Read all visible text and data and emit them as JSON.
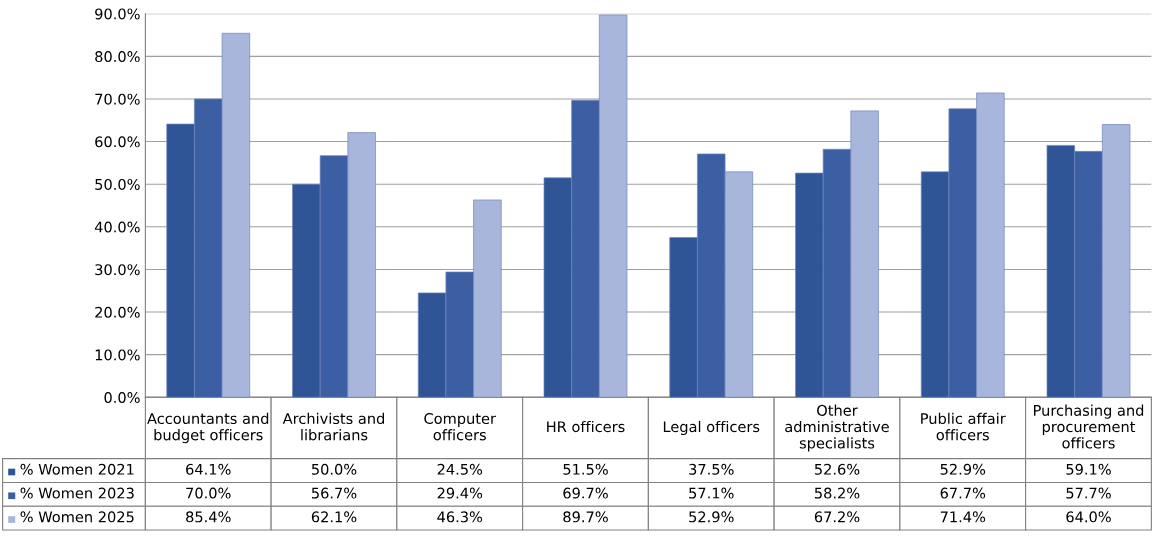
{
  "chart_data": {
    "type": "bar",
    "categories": [
      "Accountants and budget officers",
      "Archivists and librarians",
      "Computer officers",
      "HR officers",
      "Legal officers",
      "Other administrative specialists",
      "Public affair officers",
      "Purchasing and procurement officers"
    ],
    "series": [
      {
        "name": "% Women 2021",
        "color": "#2f5597",
        "values": [
          64.1,
          50.0,
          24.5,
          51.5,
          37.5,
          52.6,
          52.9,
          59.1
        ],
        "value_labels": [
          "64.1%",
          "50.0%",
          "24.5%",
          "51.5%",
          "37.5%",
          "52.6%",
          "52.9%",
          "59.1%"
        ]
      },
      {
        "name": "% Women 2023",
        "color": "#3c5ea3",
        "values": [
          70.0,
          56.7,
          29.4,
          69.7,
          57.1,
          58.2,
          67.7,
          57.7
        ],
        "value_labels": [
          "70.0%",
          "56.7%",
          "29.4%",
          "69.7%",
          "57.1%",
          "58.2%",
          "67.7%",
          "57.7%"
        ]
      },
      {
        "name": "% Women 2025",
        "color": "#a9b6dc",
        "values": [
          85.4,
          62.1,
          46.3,
          89.7,
          52.9,
          67.2,
          71.4,
          64.0
        ],
        "value_labels": [
          "85.4%",
          "62.1%",
          "46.3%",
          "89.7%",
          "52.9%",
          "67.2%",
          "71.4%",
          "64.0%"
        ]
      }
    ],
    "ylim": [
      0,
      90
    ],
    "yticks": [
      {
        "value": 0,
        "label": "0.0%"
      },
      {
        "value": 10,
        "label": "10.0%"
      },
      {
        "value": 20,
        "label": "20.0%"
      },
      {
        "value": 30,
        "label": "30.0%"
      },
      {
        "value": 40,
        "label": "40.0%"
      },
      {
        "value": 50,
        "label": "50.0%"
      },
      {
        "value": 60,
        "label": "60.0%"
      },
      {
        "value": 70,
        "label": "70.0%"
      },
      {
        "value": 80,
        "label": "80.0%"
      },
      {
        "value": 90,
        "label": "90.0%"
      }
    ],
    "grid": "y",
    "legend": "bottom"
  }
}
